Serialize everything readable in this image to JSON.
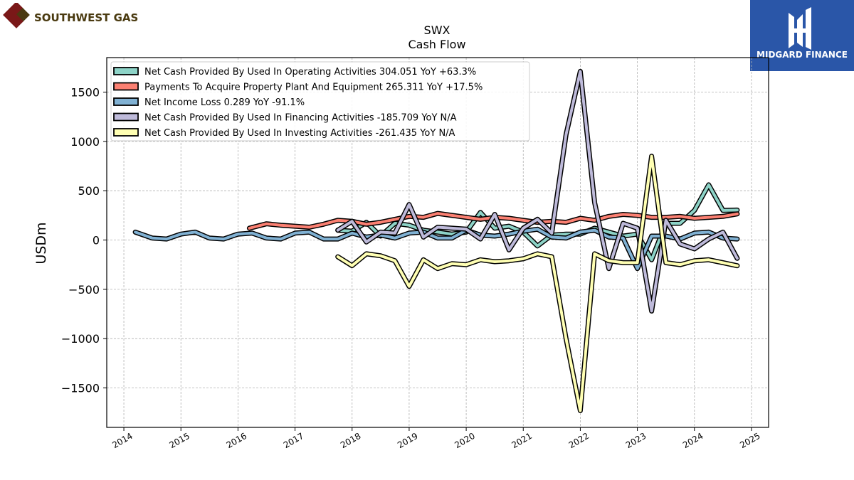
{
  "brand": {
    "name": "SOUTHWEST GAS",
    "logo_icon": "southwest-gas-diamond-icon",
    "color": "#4a3a10"
  },
  "watermark": {
    "name": "MIDGARD FINANCE",
    "logo_icon": "midgard-finance-icon",
    "background": "#2a56a8"
  },
  "chart_data": {
    "type": "line",
    "title": "SWX",
    "subtitle": "Cash Flow",
    "xlabel": "",
    "ylabel": "USDm",
    "xlim": [
      2013.7,
      2025.3
    ],
    "ylim": [
      -1900,
      1850
    ],
    "x_ticks": [
      "2014",
      "2015",
      "2016",
      "2017",
      "2018",
      "2019",
      "2020",
      "2021",
      "2022",
      "2023",
      "2024",
      "2025"
    ],
    "y_ticks": [
      -1500,
      -1000,
      -500,
      0,
      500,
      1000,
      1500
    ],
    "y_tick_labels": [
      "−1500",
      "−1000",
      "−500",
      "0",
      "500",
      "1000",
      "1500"
    ],
    "grid": true,
    "legend_position": "top-left",
    "series": [
      {
        "name": "Net Cash Provided By Used In Operating Activities",
        "legend": "Net Cash Provided By Used In Operating Activities  304.051 YoY +63.3%",
        "color": "#8dd3c7",
        "x": [
          2017.75,
          2018.0,
          2018.25,
          2018.5,
          2018.75,
          2019.0,
          2019.25,
          2019.5,
          2019.75,
          2020.0,
          2020.25,
          2020.5,
          2020.75,
          2021.0,
          2021.25,
          2021.5,
          2021.75,
          2022.0,
          2022.25,
          2022.5,
          2022.75,
          2023.0,
          2023.25,
          2023.5,
          2023.75,
          2024.0,
          2024.25,
          2024.5,
          2024.75
        ],
        "y": [
          100,
          90,
          180,
          40,
          170,
          150,
          100,
          80,
          60,
          80,
          280,
          120,
          140,
          80,
          -60,
          50,
          60,
          60,
          120,
          80,
          40,
          60,
          -200,
          170,
          170,
          300,
          560,
          300,
          304
        ]
      },
      {
        "name": "Payments To Acquire Property Plant And Equipment",
        "legend": "Payments To Acquire Property Plant And Equipment  265.311 YoY +17.5%",
        "color": "#fb8072",
        "x": [
          2016.2,
          2016.5,
          2016.75,
          2017.0,
          2017.25,
          2017.5,
          2017.75,
          2018.0,
          2018.25,
          2018.5,
          2018.75,
          2019.0,
          2019.25,
          2019.5,
          2019.75,
          2020.0,
          2020.25,
          2020.5,
          2020.75,
          2021.0,
          2021.25,
          2021.5,
          2021.75,
          2022.0,
          2022.25,
          2022.5,
          2022.75,
          2023.0,
          2023.25,
          2023.5,
          2023.75,
          2024.0,
          2024.25,
          2024.5,
          2024.75
        ],
        "y": [
          120,
          165,
          150,
          140,
          130,
          160,
          200,
          190,
          160,
          180,
          210,
          240,
          230,
          270,
          250,
          230,
          210,
          230,
          220,
          200,
          180,
          190,
          180,
          220,
          200,
          240,
          260,
          250,
          230,
          230,
          240,
          220,
          230,
          240,
          265
        ]
      },
      {
        "name": "Net Income Loss",
        "legend": "Net Income Loss  0.289 YoY -91.1%",
        "color": "#80b1d3",
        "x": [
          2014.2,
          2014.5,
          2014.75,
          2015.0,
          2015.25,
          2015.5,
          2015.75,
          2016.0,
          2016.25,
          2016.5,
          2016.75,
          2017.0,
          2017.25,
          2017.5,
          2017.75,
          2018.0,
          2018.25,
          2018.5,
          2018.75,
          2019.0,
          2019.25,
          2019.5,
          2019.75,
          2020.0,
          2020.25,
          2020.5,
          2020.75,
          2021.0,
          2021.25,
          2021.5,
          2021.75,
          2022.0,
          2022.25,
          2022.5,
          2022.75,
          2023.0,
          2023.25,
          2023.5,
          2023.75,
          2024.0,
          2024.25,
          2024.5,
          2024.75
        ],
        "y": [
          80,
          20,
          10,
          60,
          80,
          20,
          10,
          60,
          70,
          20,
          10,
          70,
          80,
          10,
          10,
          70,
          30,
          50,
          20,
          70,
          80,
          20,
          20,
          100,
          50,
          40,
          60,
          90,
          110,
          30,
          20,
          80,
          100,
          30,
          20,
          -290,
          40,
          40,
          10,
          70,
          80,
          20,
          10
        ]
      },
      {
        "name": "Net Cash Provided By Used In Financing Activities",
        "legend": "Net Cash Provided By Used In Financing Activities  -185.709 YoY N/A",
        "color": "#bebada",
        "x": [
          2017.75,
          2018.0,
          2018.25,
          2018.5,
          2018.75,
          2019.0,
          2019.25,
          2019.5,
          2019.75,
          2020.0,
          2020.25,
          2020.5,
          2020.75,
          2021.0,
          2021.25,
          2021.5,
          2021.75,
          2022.0,
          2022.25,
          2022.5,
          2022.75,
          2023.0,
          2023.25,
          2023.5,
          2023.75,
          2024.0,
          2024.25,
          2024.5,
          2024.75
        ],
        "y": [
          100,
          190,
          -20,
          80,
          70,
          360,
          30,
          130,
          120,
          110,
          10,
          260,
          -100,
          120,
          210,
          70,
          1070,
          1710,
          380,
          -290,
          170,
          120,
          -720,
          200,
          -40,
          -90,
          10,
          80,
          -186
        ]
      },
      {
        "name": "Net Cash Provided By Used In Investing Activities",
        "legend": "Net Cash Provided By Used In Investing Activities  -261.435 YoY N/A",
        "color": "#ffffb3",
        "x": [
          2017.75,
          2018.0,
          2018.25,
          2018.5,
          2018.75,
          2019.0,
          2019.25,
          2019.5,
          2019.75,
          2020.0,
          2020.25,
          2020.5,
          2020.75,
          2021.0,
          2021.25,
          2021.5,
          2021.75,
          2022.0,
          2022.25,
          2022.5,
          2022.75,
          2023.0,
          2023.25,
          2023.5,
          2023.75,
          2024.0,
          2024.25,
          2024.5,
          2024.75
        ],
        "y": [
          -170,
          -260,
          -140,
          -160,
          -210,
          -470,
          -200,
          -290,
          -240,
          -250,
          -200,
          -220,
          -210,
          -190,
          -140,
          -170,
          -1000,
          -1730,
          -140,
          -210,
          -230,
          -230,
          850,
          -230,
          -250,
          -210,
          -200,
          -230,
          -261
        ]
      }
    ]
  }
}
